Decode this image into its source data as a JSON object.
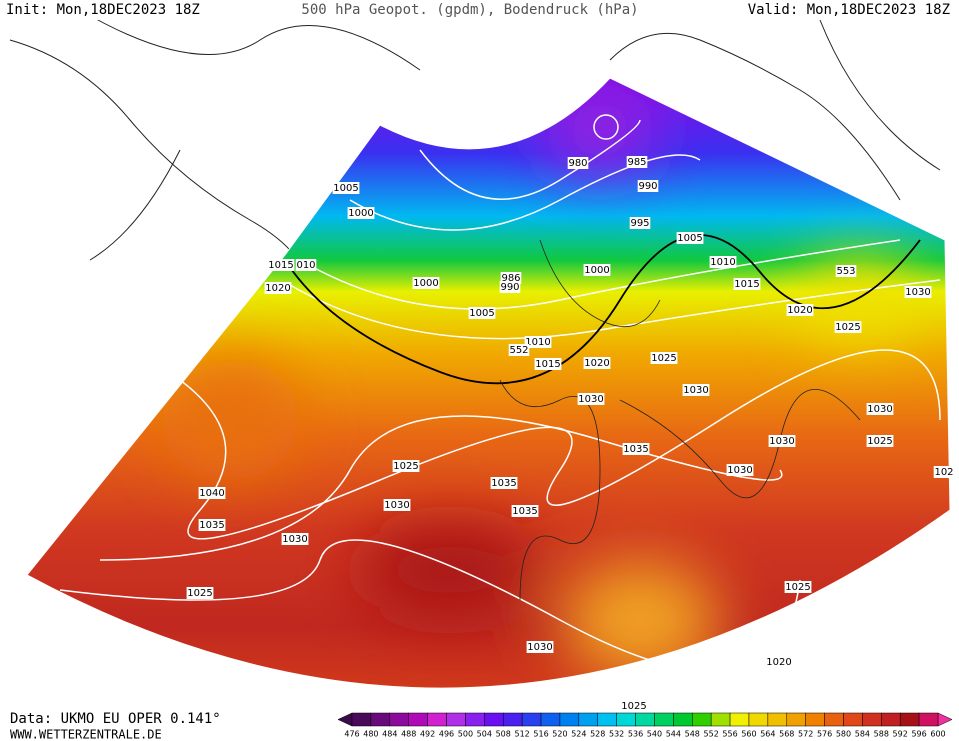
{
  "header": {
    "init": "Init: Mon,18DEC2023 18Z",
    "title": "500 hPa Geopot. (gpdm), Bodendruck (hPa)",
    "valid": "Valid: Mon,18DEC2023 18Z"
  },
  "isobar_labels": [
    "980",
    "985",
    "990",
    "1005",
    "1000",
    "995",
    "1005",
    "1010",
    "1015",
    "010",
    "1000",
    "986",
    "990",
    "1000",
    "1020",
    "1015",
    "1030",
    "553",
    "1005",
    "1020",
    "1025",
    "1010",
    "552",
    "1015",
    "1020",
    "1025",
    "1030",
    "1030",
    "1030",
    "1030",
    "1025",
    "1035",
    "1025",
    "1030",
    "1035",
    "1040",
    "1030",
    "1035",
    "1035",
    "1030",
    "1025",
    "1025",
    "1030",
    "1020",
    "1025",
    "102"
  ],
  "footer": {
    "data_source": "Data: UKMO EU OPER 0.141°",
    "website": "WWW.WETTERZENTRALE.DE"
  },
  "color_scale": {
    "labels": [
      476,
      480,
      484,
      488,
      492,
      496,
      500,
      504,
      508,
      512,
      516,
      520,
      524,
      528,
      532,
      536,
      540,
      544,
      548,
      552,
      556,
      560,
      564,
      568,
      572,
      576,
      580,
      584,
      588,
      592,
      596,
      600
    ],
    "colors": [
      "#4a0a5a",
      "#6a0a7a",
      "#8c0a9c",
      "#b00ab8",
      "#d020d0",
      "#b030e8",
      "#8a20f0",
      "#6a10f0",
      "#4a20f0",
      "#2a40f0",
      "#1060f0",
      "#0080f0",
      "#00a0f0",
      "#00c0f0",
      "#00d8d8",
      "#00d8a0",
      "#00d060",
      "#00c830",
      "#30d000",
      "#a0e000",
      "#f0f000",
      "#f0d800",
      "#f0c000",
      "#f0a000",
      "#f08000",
      "#e86010",
      "#e04818",
      "#d03020",
      "#c02020",
      "#a81018",
      "#d01060"
    ],
    "arrow_colors": [
      "#3a0a4a",
      "#f030a0"
    ]
  }
}
